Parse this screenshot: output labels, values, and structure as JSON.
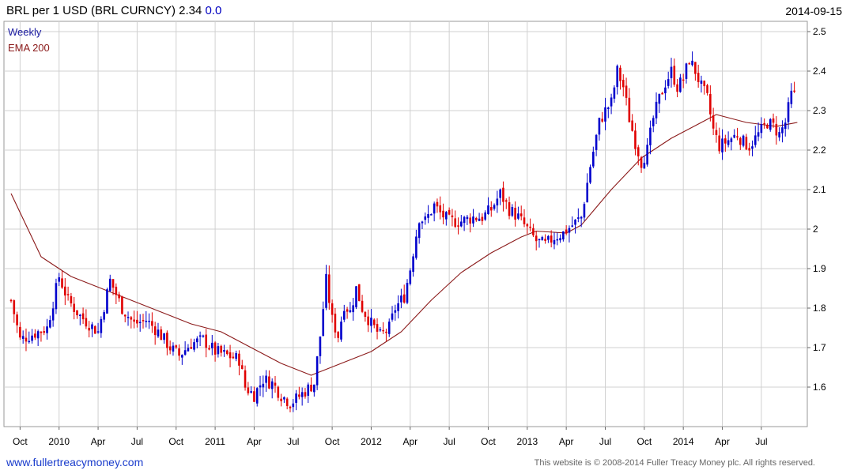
{
  "header": {
    "title": "BRL per 1 USD (BRL CURNCY) 2.34",
    "change": "0.0",
    "date": "2014-09-15"
  },
  "footer": {
    "site": "www.fullertreacymoney.com",
    "copyright": "This website is © 2008-2014 Fuller Treacy Money plc. All rights reserved."
  },
  "colors": {
    "up": "#0000cc",
    "down": "#e00000",
    "ema": "#8b1a1a",
    "grid": "#d0d0d0"
  },
  "chart_data": {
    "type": "candlestick",
    "legend": [
      {
        "label": "Weekly",
        "color": "#1a1aa0"
      },
      {
        "label": "EMA 200",
        "color": "#8b1a1a"
      }
    ],
    "ylim": [
      1.5,
      2.5
    ],
    "yticks": [
      "1.6",
      "1.7",
      "1.8",
      "1.9",
      "2",
      "2.1",
      "2.2",
      "2.3",
      "2.4",
      "2.5"
    ],
    "ytick_values": [
      1.6,
      1.7,
      1.8,
      1.9,
      2.0,
      2.1,
      2.2,
      2.3,
      2.4,
      2.5
    ],
    "xlim": [
      0,
      264
    ],
    "xticks": [
      {
        "label": "Oct",
        "x": 3
      },
      {
        "label": "2010",
        "x": 16
      },
      {
        "label": "Apr",
        "x": 29
      },
      {
        "label": "Jul",
        "x": 42
      },
      {
        "label": "Oct",
        "x": 55
      },
      {
        "label": "2011",
        "x": 68
      },
      {
        "label": "Apr",
        "x": 81
      },
      {
        "label": "Jul",
        "x": 94
      },
      {
        "label": "Oct",
        "x": 107
      },
      {
        "label": "2012",
        "x": 120
      },
      {
        "label": "Apr",
        "x": 133
      },
      {
        "label": "Jul",
        "x": 146
      },
      {
        "label": "Oct",
        "x": 159
      },
      {
        "label": "2013",
        "x": 172
      },
      {
        "label": "Apr",
        "x": 185
      },
      {
        "label": "Jul",
        "x": 198
      },
      {
        "label": "Oct",
        "x": 211
      },
      {
        "label": "2014",
        "x": 224
      },
      {
        "label": "Apr",
        "x": 237
      },
      {
        "label": "Jul",
        "x": 250
      }
    ],
    "close_anchors": [
      [
        0,
        1.82
      ],
      [
        3,
        1.72
      ],
      [
        6,
        1.73
      ],
      [
        12,
        1.75
      ],
      [
        16,
        1.88
      ],
      [
        19,
        1.82
      ],
      [
        23,
        1.78
      ],
      [
        29,
        1.74
      ],
      [
        33,
        1.87
      ],
      [
        37,
        1.8
      ],
      [
        41,
        1.76
      ],
      [
        45,
        1.77
      ],
      [
        49,
        1.74
      ],
      [
        53,
        1.7
      ],
      [
        56,
        1.68
      ],
      [
        60,
        1.71
      ],
      [
        64,
        1.72
      ],
      [
        68,
        1.69
      ],
      [
        72,
        1.68
      ],
      [
        76,
        1.67
      ],
      [
        78,
        1.6
      ],
      [
        81,
        1.58
      ],
      [
        84,
        1.62
      ],
      [
        87,
        1.61
      ],
      [
        90,
        1.58
      ],
      [
        93,
        1.56
      ],
      [
        95,
        1.57
      ],
      [
        98,
        1.59
      ],
      [
        101,
        1.61
      ],
      [
        103,
        1.73
      ],
      [
        105,
        1.87
      ],
      [
        107,
        1.77
      ],
      [
        109,
        1.73
      ],
      [
        111,
        1.81
      ],
      [
        113,
        1.79
      ],
      [
        115,
        1.85
      ],
      [
        117,
        1.8
      ],
      [
        120,
        1.76
      ],
      [
        123,
        1.73
      ],
      [
        126,
        1.75
      ],
      [
        128,
        1.8
      ],
      [
        131,
        1.83
      ],
      [
        133,
        1.9
      ],
      [
        136,
        2.03
      ],
      [
        138,
        2.02
      ],
      [
        141,
        2.06
      ],
      [
        143,
        2.04
      ],
      [
        146,
        2.02
      ],
      [
        150,
        2.02
      ],
      [
        154,
        2.03
      ],
      [
        157,
        2.03
      ],
      [
        160,
        2.05
      ],
      [
        163,
        2.09
      ],
      [
        166,
        2.05
      ],
      [
        169,
        2.03
      ],
      [
        172,
        2.0
      ],
      [
        175,
        1.97
      ],
      [
        178,
        1.96
      ],
      [
        181,
        1.98
      ],
      [
        184,
        1.99
      ],
      [
        187,
        2.01
      ],
      [
        190,
        2.03
      ],
      [
        193,
        2.16
      ],
      [
        196,
        2.27
      ],
      [
        198,
        2.3
      ],
      [
        200,
        2.32
      ],
      [
        202,
        2.4
      ],
      [
        204,
        2.36
      ],
      [
        206,
        2.28
      ],
      [
        208,
        2.22
      ],
      [
        210,
        2.17
      ],
      [
        212,
        2.2
      ],
      [
        214,
        2.28
      ],
      [
        216,
        2.33
      ],
      [
        218,
        2.37
      ],
      [
        220,
        2.4
      ],
      [
        222,
        2.36
      ],
      [
        224,
        2.38
      ],
      [
        226,
        2.43
      ],
      [
        228,
        2.4
      ],
      [
        230,
        2.36
      ],
      [
        232,
        2.33
      ],
      [
        234,
        2.25
      ],
      [
        236,
        2.21
      ],
      [
        238,
        2.22
      ],
      [
        240,
        2.23
      ],
      [
        242,
        2.24
      ],
      [
        244,
        2.22
      ],
      [
        246,
        2.21
      ],
      [
        248,
        2.23
      ],
      [
        250,
        2.25
      ],
      [
        252,
        2.27
      ],
      [
        254,
        2.26
      ],
      [
        256,
        2.24
      ],
      [
        258,
        2.27
      ],
      [
        260,
        2.34
      ],
      [
        261,
        2.34
      ]
    ],
    "ema_anchors": [
      [
        0,
        2.09
      ],
      [
        10,
        1.93
      ],
      [
        20,
        1.88
      ],
      [
        30,
        1.85
      ],
      [
        40,
        1.82
      ],
      [
        50,
        1.79
      ],
      [
        60,
        1.76
      ],
      [
        70,
        1.74
      ],
      [
        80,
        1.7
      ],
      [
        90,
        1.66
      ],
      [
        100,
        1.63
      ],
      [
        110,
        1.66
      ],
      [
        120,
        1.69
      ],
      [
        130,
        1.74
      ],
      [
        140,
        1.82
      ],
      [
        150,
        1.89
      ],
      [
        160,
        1.94
      ],
      [
        170,
        1.98
      ],
      [
        175,
        1.995
      ],
      [
        185,
        1.99
      ],
      [
        190,
        2.01
      ],
      [
        200,
        2.1
      ],
      [
        210,
        2.18
      ],
      [
        220,
        2.23
      ],
      [
        230,
        2.27
      ],
      [
        235,
        2.29
      ],
      [
        245,
        2.27
      ],
      [
        255,
        2.26
      ],
      [
        262,
        2.27
      ]
    ]
  }
}
